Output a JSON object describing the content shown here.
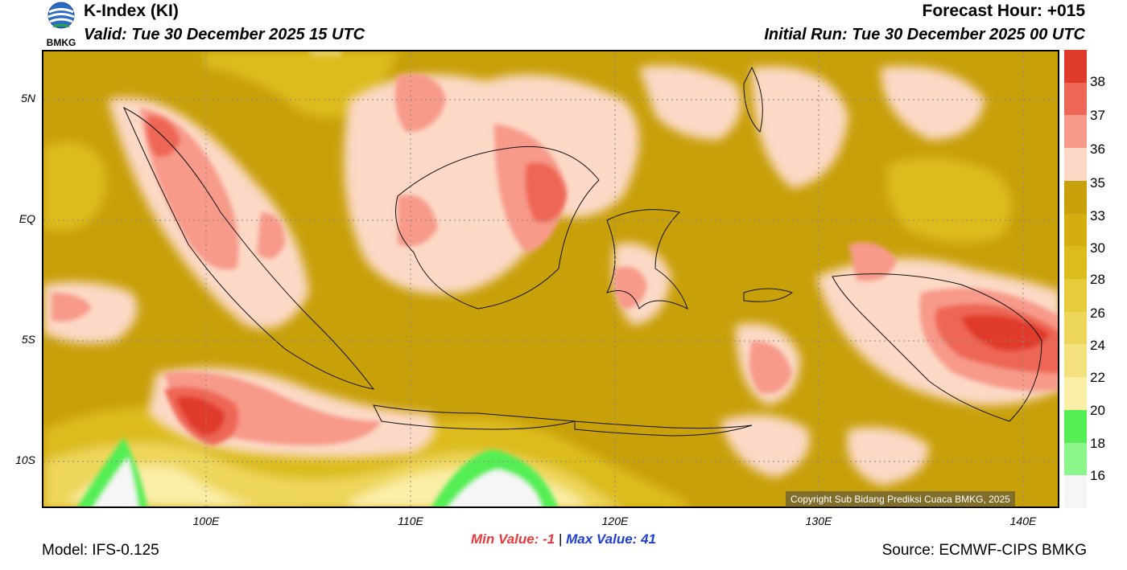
{
  "header": {
    "logo_text": "BMKG",
    "title": "K-Index (KI)",
    "valid": "Valid: Tue 30 December 2025 15 UTC",
    "forecast_hour": "Forecast Hour: +015",
    "initial_run": "Initial Run: Tue 30 December 2025 00 UTC"
  },
  "map": {
    "lat_labels": [
      "5N",
      "EQ",
      "5S",
      "10S"
    ],
    "lon_labels": [
      "100E",
      "110E",
      "120E",
      "130E",
      "140E"
    ],
    "copyright": "Copyright Sub Bidang Prediksi Cuaca BMKG, 2025"
  },
  "colorbar": {
    "labels": [
      "38",
      "37",
      "36",
      "35",
      "33",
      "30",
      "28",
      "26",
      "24",
      "22",
      "20",
      "18",
      "16"
    ],
    "colors": [
      "#e03a2a",
      "#ee6655",
      "#f79a8a",
      "#fcd9c6",
      "#c8a00a",
      "#d4ae10",
      "#dcbc1c",
      "#e6cb3a",
      "#eed65a",
      "#f4e27e",
      "#fbeea6",
      "#55ee55",
      "#8cf58c",
      "#f6f6f6"
    ]
  },
  "footer": {
    "min_label": "Min Value:",
    "min_value": "-1",
    "separator": "|",
    "max_label": "Max Value:",
    "max_value": "41",
    "model": "Model: IFS-0.125",
    "source": "Source: ECMWF-CIPS BMKG"
  }
}
